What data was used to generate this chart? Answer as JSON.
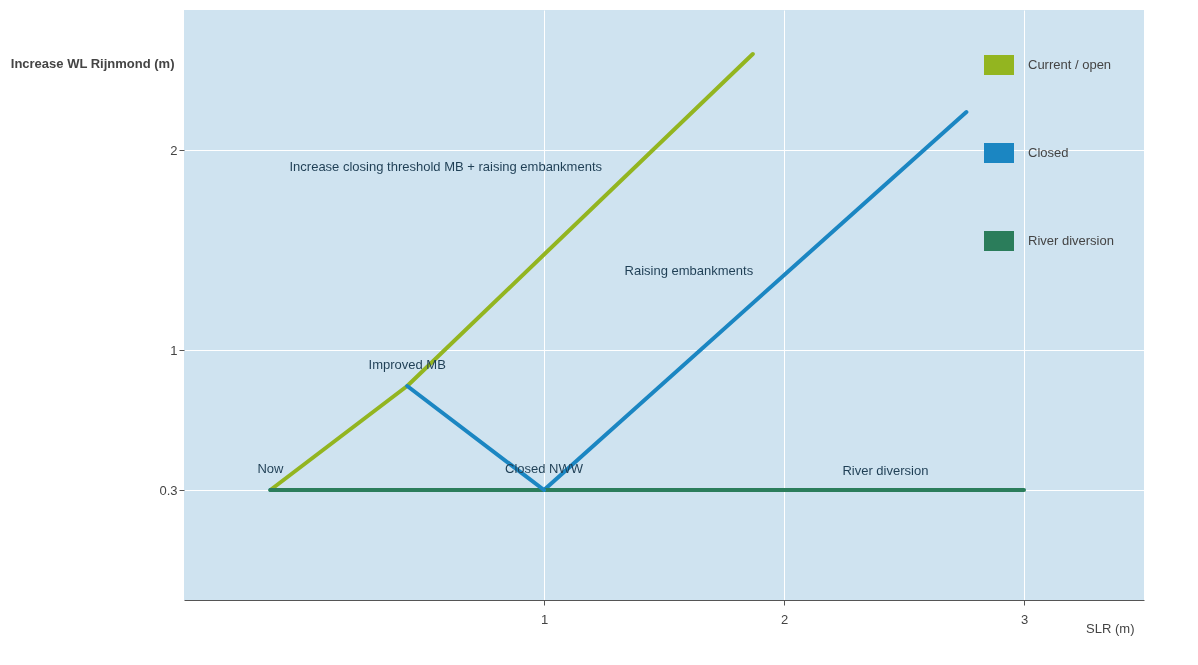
{
  "chart_data": {
    "type": "line",
    "xlabel": "SLR (m)",
    "ylabel": "Increase WL Rijnmond (m)",
    "xlim": [
      -0.5,
      3.5
    ],
    "ylim": [
      -0.25,
      2.7
    ],
    "xticks": [
      1,
      2,
      3
    ],
    "yticks": [
      0.3,
      1,
      2
    ],
    "grid": true,
    "legend": "top right",
    "marker": "none",
    "line_style": "solid",
    "series": [
      {
        "name": "Current / open",
        "color": "#93b520",
        "x": [
          -0.14,
          0.43,
          1.87
        ],
        "values": [
          0.3,
          0.82,
          2.48
        ]
      },
      {
        "name": "Closed",
        "color": "#1b86c2",
        "x": [
          -0.14,
          1,
          2.76
        ],
        "values": [
          0.3,
          0.3,
          2.19
        ]
      },
      {
        "name": "River diversion",
        "color": "#2b7d5b",
        "x": [
          -0.14,
          3
        ],
        "values": [
          0.3,
          0.3
        ]
      },
      {
        "color": "#1b86c2",
        "x": [
          0.43,
          1
        ],
        "values": [
          0.82,
          0.3
        ]
      }
    ],
    "annotations": [
      {
        "text": "Now",
        "x": -0.14,
        "y": 0.3
      },
      {
        "text": "Improved MB",
        "x": 0.43,
        "y": 0.82
      },
      {
        "text": "Closed NWW",
        "x": 1,
        "y": 0.3
      },
      {
        "text": "Increase closing threshold MB + raising embankments",
        "x": 1.3,
        "y": 1.82
      },
      {
        "text": "Raising embankments",
        "x": 1.93,
        "y": 1.3
      },
      {
        "text": "River diversion",
        "x": 2.66,
        "y": 0.3
      }
    ]
  }
}
